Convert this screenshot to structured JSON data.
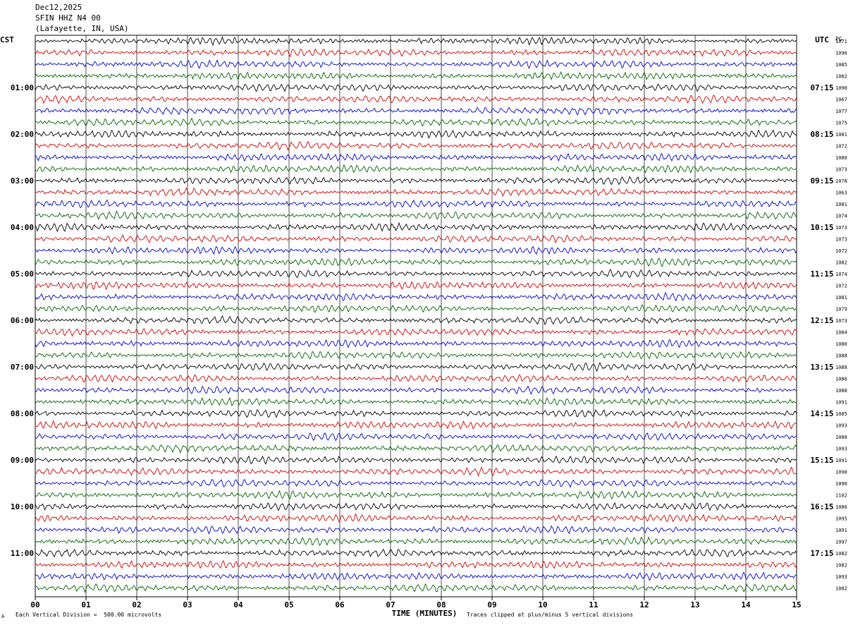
{
  "header": {
    "date": "Dec12,2025",
    "station": "SFIN HHZ N4 00",
    "location": "(Lafayette, IN, USA)"
  },
  "labels": {
    "left_tz": "CST",
    "right_tz": "UTC",
    "pg_header": "PG",
    "x_axis": "TIME (MINUTES)",
    "scale_note": "Each Vertical Division =  500.00 microvolts",
    "clip_note": "Traces clipped at plus/minus 5 vertical divisions",
    "corner_mark": "A"
  },
  "colors": {
    "black": "#000000",
    "red": "#d40000",
    "blue": "#0000cc",
    "green": "#006400",
    "grid": "#000000"
  },
  "chart_data": {
    "type": "line",
    "title": "",
    "xlabel": "TIME (MINUTES)",
    "xlim": [
      0,
      15
    ],
    "x_ticks": [
      "00",
      "01",
      "02",
      "03",
      "04",
      "05",
      "06",
      "07",
      "08",
      "09",
      "10",
      "11",
      "12",
      "13",
      "14",
      "15"
    ],
    "trace_color_cycle": [
      "black",
      "red",
      "blue",
      "green"
    ],
    "traces_per_hour": 4,
    "rows": 48,
    "left_hour_labels": [
      "01:00",
      "02:00",
      "03:00",
      "04:00",
      "05:00",
      "06:00",
      "07:00",
      "08:00",
      "09:00",
      "10:00",
      "11:00"
    ],
    "right_hour_labels": [
      "07:15",
      "08:15",
      "09:15",
      "10:15",
      "11:15",
      "12:15",
      "13:15",
      "14:15",
      "15:15",
      "16:15",
      "17:15"
    ],
    "row_values": [
      "1071",
      "1096",
      "1085",
      "1082",
      "1090",
      "1067",
      "1077",
      "1075",
      "1081",
      "1072",
      "1080",
      "1073",
      "1078",
      "1063",
      "1081",
      "1074",
      "1073",
      "1073",
      "1072",
      "1082",
      "1074",
      "1072",
      "1081",
      "1079",
      "1073",
      "1084",
      "1080",
      "1088",
      "1088",
      "1086",
      "1088",
      "1091",
      "1085",
      "1093",
      "1088",
      "1093",
      "1091",
      "1090",
      "1090",
      "1102",
      "1086",
      "1095",
      "1091",
      "1097",
      "1082",
      "1082",
      "1093",
      "1082"
    ]
  }
}
